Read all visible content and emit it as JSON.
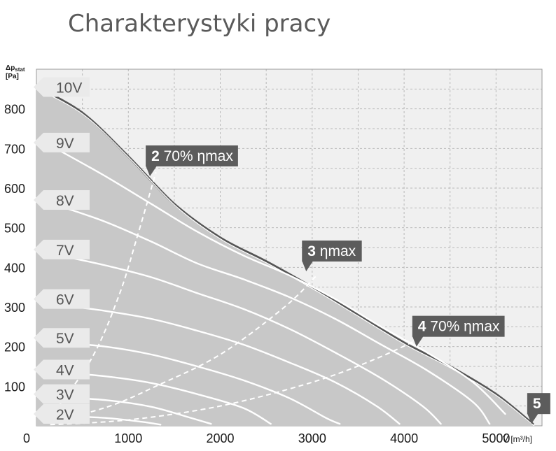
{
  "page": {
    "title": "Charakterystyki pracy"
  },
  "chart_data": {
    "type": "line",
    "xlim": [
      0,
      5500
    ],
    "ylim": [
      0,
      900
    ],
    "x_ticks": [
      "0",
      "1000",
      "2000",
      "3000",
      "4000",
      "5000"
    ],
    "y_ticks": [
      "100",
      "200",
      "300",
      "400",
      "500",
      "600",
      "700",
      "800"
    ],
    "ylabel": "Δp_stat [Pa]",
    "xlabel": "V̇ [m³/h]",
    "grid": true,
    "colors": {
      "plot_background": "#f0f0f0",
      "envelope_fill": "#c8c8c8",
      "envelope_line": "#555555",
      "speed_curve": "#ffffff",
      "efficiency_line": "#ffffff",
      "label_tab": "#eaeaea",
      "callout": "#5c5c5c"
    },
    "series": [
      {
        "name": "10V",
        "label_y": 855,
        "points": [
          [
            0,
            855
          ],
          [
            500,
            790
          ],
          [
            1000,
            680
          ],
          [
            1500,
            560
          ],
          [
            2000,
            475
          ],
          [
            2500,
            415
          ],
          [
            3000,
            350
          ],
          [
            3500,
            280
          ],
          [
            4000,
            210
          ],
          [
            4500,
            150
          ],
          [
            5000,
            80
          ],
          [
            5400,
            5
          ]
        ]
      },
      {
        "name": "9V",
        "label_y": 715,
        "points": [
          [
            250,
            695
          ],
          [
            750,
            630
          ],
          [
            1250,
            560
          ],
          [
            1750,
            490
          ],
          [
            2250,
            430
          ],
          [
            2750,
            380
          ],
          [
            3250,
            320
          ],
          [
            3750,
            250
          ],
          [
            4250,
            185
          ],
          [
            4750,
            110
          ],
          [
            5100,
            30
          ]
        ]
      },
      {
        "name": "8V",
        "label_y": 570,
        "points": [
          [
            250,
            555
          ],
          [
            750,
            515
          ],
          [
            1250,
            465
          ],
          [
            1750,
            410
          ],
          [
            2250,
            370
          ],
          [
            2750,
            325
          ],
          [
            3250,
            270
          ],
          [
            3750,
            205
          ],
          [
            4250,
            140
          ],
          [
            4750,
            60
          ],
          [
            4930,
            5
          ]
        ]
      },
      {
        "name": "7V",
        "label_y": 445,
        "points": [
          [
            250,
            430
          ],
          [
            750,
            405
          ],
          [
            1250,
            375
          ],
          [
            1750,
            335
          ],
          [
            2250,
            295
          ],
          [
            2750,
            245
          ],
          [
            3250,
            185
          ],
          [
            3750,
            120
          ],
          [
            4200,
            50
          ],
          [
            4400,
            5
          ]
        ]
      },
      {
        "name": "6V",
        "label_y": 320,
        "points": [
          [
            250,
            305
          ],
          [
            750,
            290
          ],
          [
            1250,
            270
          ],
          [
            1750,
            240
          ],
          [
            2250,
            205
          ],
          [
            2750,
            160
          ],
          [
            3250,
            110
          ],
          [
            3700,
            50
          ],
          [
            3950,
            5
          ]
        ]
      },
      {
        "name": "5V",
        "label_y": 222,
        "points": [
          [
            250,
            210
          ],
          [
            750,
            200
          ],
          [
            1250,
            180
          ],
          [
            1750,
            150
          ],
          [
            2250,
            115
          ],
          [
            2750,
            70
          ],
          [
            3150,
            20
          ],
          [
            3300,
            5
          ]
        ]
      },
      {
        "name": "4V",
        "label_y": 142,
        "points": [
          [
            250,
            135
          ],
          [
            750,
            125
          ],
          [
            1250,
            108
          ],
          [
            1750,
            80
          ],
          [
            2250,
            45
          ],
          [
            2550,
            5
          ]
        ]
      },
      {
        "name": "3V",
        "label_y": 80,
        "points": [
          [
            250,
            72
          ],
          [
            750,
            65
          ],
          [
            1250,
            48
          ],
          [
            1650,
            22
          ],
          [
            1900,
            5
          ]
        ]
      },
      {
        "name": "2V",
        "label_y": 30,
        "points": [
          [
            250,
            25
          ],
          [
            750,
            20
          ],
          [
            1150,
            10
          ],
          [
            1350,
            3
          ]
        ]
      }
    ],
    "efficiency_lines": [
      {
        "name": "2 70% ηmax",
        "points": [
          [
            150,
            20
          ],
          [
            600,
            170
          ],
          [
            900,
            330
          ],
          [
            1100,
            480
          ],
          [
            1300,
            640
          ]
        ]
      },
      {
        "name": "3 ηmax",
        "points": [
          [
            150,
            8
          ],
          [
            800,
            50
          ],
          [
            1300,
            100
          ],
          [
            2000,
            180
          ],
          [
            2700,
            300
          ],
          [
            3050,
            380
          ]
        ]
      },
      {
        "name": "4 70% ηmax",
        "points": [
          [
            150,
            3
          ],
          [
            1000,
            15
          ],
          [
            2000,
            50
          ],
          [
            3000,
            110
          ],
          [
            3700,
            170
          ],
          [
            4300,
            235
          ]
        ]
      }
    ],
    "annotations": [
      {
        "number": "2",
        "text": "70% ηmax",
        "x": 1250,
        "y": 630
      },
      {
        "number": "3",
        "text": "ηmax",
        "x": 2950,
        "y": 390
      },
      {
        "number": "4",
        "text": "70% ηmax",
        "x": 4150,
        "y": 200
      },
      {
        "number": "5",
        "text": "",
        "x": 5400,
        "y": 5
      }
    ]
  }
}
